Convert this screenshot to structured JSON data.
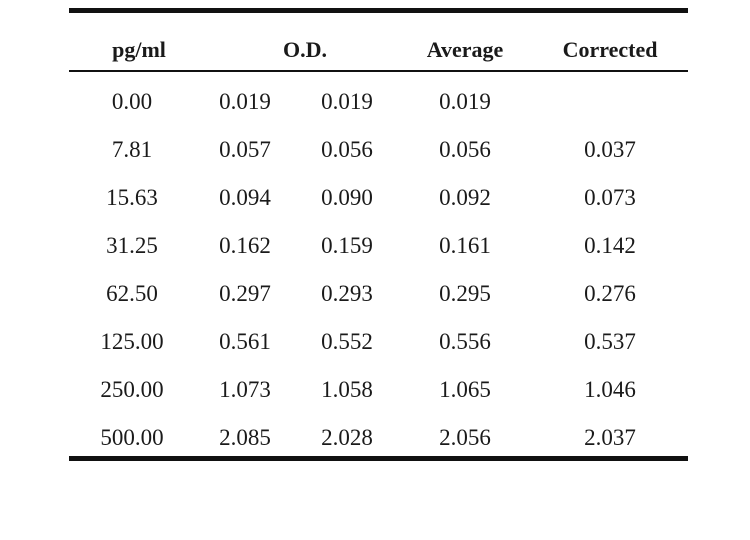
{
  "table": {
    "headers": {
      "concentration": "pg/ml",
      "od": "O.D.",
      "average": "Average",
      "corrected": "Corrected"
    },
    "rows": [
      {
        "concentration": "0.00",
        "od1": "0.019",
        "od2": "0.019",
        "average": "0.019",
        "corrected": ""
      },
      {
        "concentration": "7.81",
        "od1": "0.057",
        "od2": "0.056",
        "average": "0.056",
        "corrected": "0.037"
      },
      {
        "concentration": "15.63",
        "od1": "0.094",
        "od2": "0.090",
        "average": "0.092",
        "corrected": "0.073"
      },
      {
        "concentration": "31.25",
        "od1": "0.162",
        "od2": "0.159",
        "average": "0.161",
        "corrected": "0.142"
      },
      {
        "concentration": "62.50",
        "od1": "0.297",
        "od2": "0.293",
        "average": "0.295",
        "corrected": "0.276"
      },
      {
        "concentration": "125.00",
        "od1": "0.561",
        "od2": "0.552",
        "average": "0.556",
        "corrected": "0.537"
      },
      {
        "concentration": "250.00",
        "od1": "1.073",
        "od2": "1.058",
        "average": "1.065",
        "corrected": "1.046"
      },
      {
        "concentration": "500.00",
        "od1": "2.085",
        "od2": "2.028",
        "average": "2.056",
        "corrected": "2.037"
      }
    ]
  }
}
